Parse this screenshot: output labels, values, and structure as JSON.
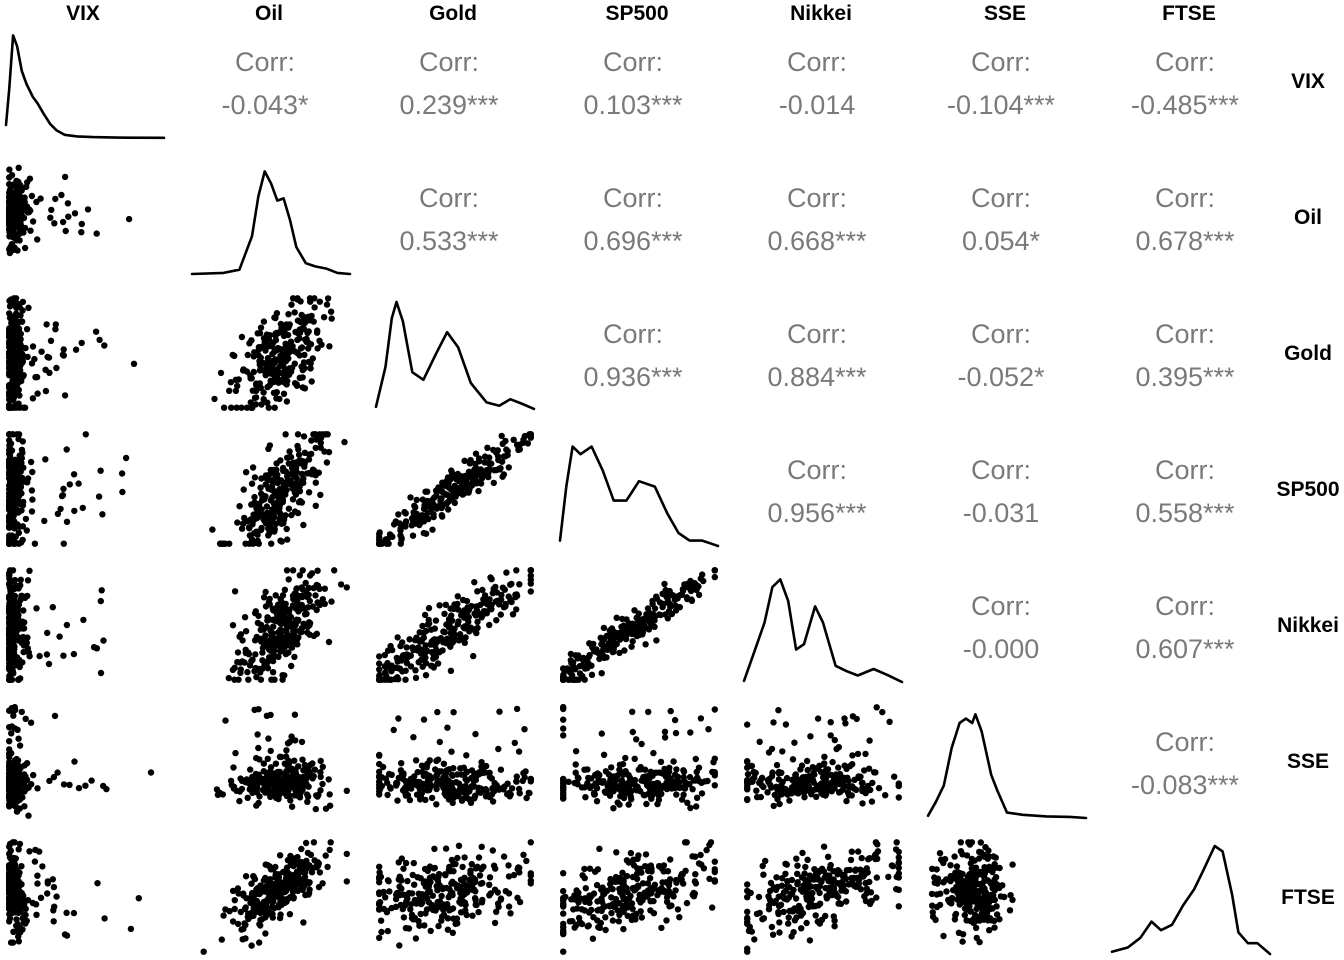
{
  "chart_data": {
    "type": "scatterplot-matrix",
    "variables": [
      "VIX",
      "Oil",
      "Gold",
      "SP500",
      "Nikkei",
      "SSE",
      "FTSE"
    ],
    "diagonal": "density",
    "lower": "scatter",
    "upper": "correlation",
    "correlation_label": "Corr:",
    "correlations": [
      {
        "row": "VIX",
        "col": "Oil",
        "text": "-0.043*",
        "value": -0.043,
        "stars": "*"
      },
      {
        "row": "VIX",
        "col": "Gold",
        "text": "0.239***",
        "value": 0.239,
        "stars": "***"
      },
      {
        "row": "VIX",
        "col": "SP500",
        "text": "0.103***",
        "value": 0.103,
        "stars": "***"
      },
      {
        "row": "VIX",
        "col": "Nikkei",
        "text": "-0.014",
        "value": -0.014,
        "stars": ""
      },
      {
        "row": "VIX",
        "col": "SSE",
        "text": "-0.104***",
        "value": -0.104,
        "stars": "***"
      },
      {
        "row": "VIX",
        "col": "FTSE",
        "text": "-0.485***",
        "value": -0.485,
        "stars": "***"
      },
      {
        "row": "Oil",
        "col": "Gold",
        "text": "0.533***",
        "value": 0.533,
        "stars": "***"
      },
      {
        "row": "Oil",
        "col": "SP500",
        "text": "0.696***",
        "value": 0.696,
        "stars": "***"
      },
      {
        "row": "Oil",
        "col": "Nikkei",
        "text": "0.668***",
        "value": 0.668,
        "stars": "***"
      },
      {
        "row": "Oil",
        "col": "SSE",
        "text": "0.054*",
        "value": 0.054,
        "stars": "*"
      },
      {
        "row": "Oil",
        "col": "FTSE",
        "text": "0.678***",
        "value": 0.678,
        "stars": "***"
      },
      {
        "row": "Gold",
        "col": "SP500",
        "text": "0.936***",
        "value": 0.936,
        "stars": "***"
      },
      {
        "row": "Gold",
        "col": "Nikkei",
        "text": "0.884***",
        "value": 0.884,
        "stars": "***"
      },
      {
        "row": "Gold",
        "col": "SSE",
        "text": "-0.052*",
        "value": -0.052,
        "stars": "*"
      },
      {
        "row": "Gold",
        "col": "FTSE",
        "text": "0.395***",
        "value": 0.395,
        "stars": "***"
      },
      {
        "row": "SP500",
        "col": "Nikkei",
        "text": "0.956***",
        "value": 0.956,
        "stars": "***"
      },
      {
        "row": "SP500",
        "col": "SSE",
        "text": "-0.031",
        "value": -0.031,
        "stars": ""
      },
      {
        "row": "SP500",
        "col": "FTSE",
        "text": "0.558***",
        "value": 0.558,
        "stars": "***"
      },
      {
        "row": "Nikkei",
        "col": "SSE",
        "text": "-0.000",
        "value": -0.0,
        "stars": ""
      },
      {
        "row": "Nikkei",
        "col": "FTSE",
        "text": "0.607***",
        "value": 0.607,
        "stars": "***"
      },
      {
        "row": "SSE",
        "col": "FTSE",
        "text": "-0.083***",
        "value": -0.083,
        "stars": "***"
      }
    ],
    "densities": {
      "VIX": [
        [
          0,
          0.12
        ],
        [
          0.02,
          0.45
        ],
        [
          0.045,
          0.95
        ],
        [
          0.07,
          0.85
        ],
        [
          0.1,
          0.62
        ],
        [
          0.13,
          0.5
        ],
        [
          0.17,
          0.38
        ],
        [
          0.2,
          0.32
        ],
        [
          0.24,
          0.22
        ],
        [
          0.28,
          0.13
        ],
        [
          0.32,
          0.07
        ],
        [
          0.37,
          0.03
        ],
        [
          0.45,
          0.015
        ],
        [
          0.55,
          0.008
        ],
        [
          0.7,
          0.004
        ],
        [
          1,
          0.002
        ]
      ],
      "Oil": [
        [
          0,
          0
        ],
        [
          0.2,
          0.01
        ],
        [
          0.3,
          0.04
        ],
        [
          0.38,
          0.35
        ],
        [
          0.42,
          0.72
        ],
        [
          0.46,
          0.95
        ],
        [
          0.5,
          0.84
        ],
        [
          0.54,
          0.68
        ],
        [
          0.58,
          0.7
        ],
        [
          0.62,
          0.5
        ],
        [
          0.66,
          0.25
        ],
        [
          0.72,
          0.1
        ],
        [
          0.78,
          0.07
        ],
        [
          0.85,
          0.05
        ],
        [
          0.92,
          0.01
        ],
        [
          1,
          0
        ]
      ],
      "Gold": [
        [
          0,
          0.03
        ],
        [
          0.06,
          0.4
        ],
        [
          0.1,
          0.85
        ],
        [
          0.13,
          1.0
        ],
        [
          0.17,
          0.82
        ],
        [
          0.23,
          0.35
        ],
        [
          0.3,
          0.28
        ],
        [
          0.38,
          0.52
        ],
        [
          0.45,
          0.72
        ],
        [
          0.52,
          0.58
        ],
        [
          0.6,
          0.25
        ],
        [
          0.7,
          0.07
        ],
        [
          0.78,
          0.04
        ],
        [
          0.85,
          0.1
        ],
        [
          0.92,
          0.06
        ],
        [
          1,
          0.01
        ]
      ],
      "SP500": [
        [
          0,
          0.05
        ],
        [
          0.04,
          0.55
        ],
        [
          0.08,
          0.92
        ],
        [
          0.13,
          0.85
        ],
        [
          0.2,
          0.92
        ],
        [
          0.27,
          0.7
        ],
        [
          0.34,
          0.42
        ],
        [
          0.42,
          0.42
        ],
        [
          0.5,
          0.6
        ],
        [
          0.6,
          0.55
        ],
        [
          0.68,
          0.3
        ],
        [
          0.75,
          0.12
        ],
        [
          0.82,
          0.05
        ],
        [
          0.9,
          0.05
        ],
        [
          0.96,
          0.02
        ],
        [
          1,
          0
        ]
      ],
      "Nikkei": [
        [
          0,
          0.01
        ],
        [
          0.07,
          0.3
        ],
        [
          0.13,
          0.55
        ],
        [
          0.18,
          0.88
        ],
        [
          0.23,
          0.95
        ],
        [
          0.28,
          0.75
        ],
        [
          0.33,
          0.3
        ],
        [
          0.38,
          0.35
        ],
        [
          0.45,
          0.7
        ],
        [
          0.5,
          0.55
        ],
        [
          0.58,
          0.15
        ],
        [
          0.65,
          0.1
        ],
        [
          0.72,
          0.06
        ],
        [
          0.82,
          0.12
        ],
        [
          0.9,
          0.07
        ],
        [
          1,
          0
        ]
      ],
      "SSE": [
        [
          0,
          0.02
        ],
        [
          0.05,
          0.15
        ],
        [
          0.1,
          0.3
        ],
        [
          0.15,
          0.65
        ],
        [
          0.2,
          0.88
        ],
        [
          0.24,
          0.92
        ],
        [
          0.28,
          0.88
        ],
        [
          0.3,
          0.96
        ],
        [
          0.34,
          0.8
        ],
        [
          0.4,
          0.4
        ],
        [
          0.44,
          0.25
        ],
        [
          0.5,
          0.05
        ],
        [
          0.6,
          0.03
        ],
        [
          0.75,
          0.015
        ],
        [
          0.9,
          0.01
        ],
        [
          1,
          0
        ]
      ],
      "FTSE": [
        [
          0,
          0.02
        ],
        [
          0.1,
          0.06
        ],
        [
          0.18,
          0.15
        ],
        [
          0.25,
          0.3
        ],
        [
          0.31,
          0.22
        ],
        [
          0.38,
          0.27
        ],
        [
          0.45,
          0.45
        ],
        [
          0.52,
          0.6
        ],
        [
          0.58,
          0.78
        ],
        [
          0.65,
          1.0
        ],
        [
          0.7,
          0.95
        ],
        [
          0.76,
          0.55
        ],
        [
          0.8,
          0.2
        ],
        [
          0.86,
          0.1
        ],
        [
          0.92,
          0.1
        ],
        [
          1,
          0
        ]
      ]
    },
    "scatter_shape": {
      "VIX": [
        0.06,
        0.04
      ],
      "Oil": [
        0.55,
        0.14
      ],
      "Gold": [
        0.45,
        0.26
      ],
      "SP500": [
        0.45,
        0.26
      ],
      "Nikkei": [
        0.45,
        0.26
      ],
      "SSE": [
        0.3,
        0.09
      ],
      "FTSE": [
        0.55,
        0.18
      ]
    }
  }
}
